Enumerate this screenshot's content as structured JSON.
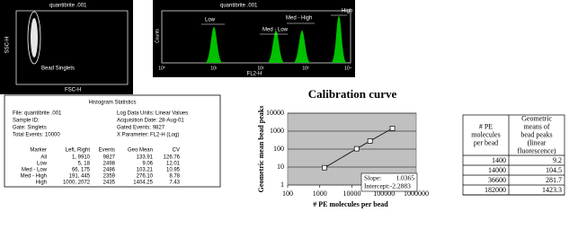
{
  "dot_plot": {
    "title": "quantibrite .001",
    "gate": "Bead Singlets",
    "xlabel": "FSC-H",
    "ylabel": "SSC-H"
  },
  "histogram": {
    "title": "quantibrite .001",
    "xlabel": "FL2-H",
    "ylabel": "Counts",
    "xticks": [
      "10⁰",
      "10¹",
      "10²",
      "10³",
      "10⁴"
    ],
    "markers": [
      "Low",
      "Med - Low",
      "Med - High",
      "High"
    ]
  },
  "stats": {
    "title": "Histogram Statistics",
    "info": [
      "File: quantibrite .001",
      "Log Data Units: Linear Values",
      "Sample ID:",
      "Acquisition Date: 28-Aug-01",
      "Gate: Singlets",
      "Gated Events: 9827",
      "Total Events: 10000",
      "X Parameter: FL2-H (Log)"
    ],
    "header": [
      "Marker",
      "Left, Right",
      "Events",
      "Geo Mean",
      "CV"
    ],
    "rows": [
      [
        "All",
        "1, 9910",
        "9827",
        "133.91",
        "126.76"
      ],
      [
        "Low",
        "5, 18",
        "2498",
        "9.06",
        "12.01"
      ],
      [
        "Med - Low",
        "66, 175",
        "2486",
        "103.21",
        "10.95"
      ],
      [
        "Med - High",
        "191, 445",
        "2359",
        "276.10",
        "8.78"
      ],
      [
        "High",
        "1000, 2072",
        "2435",
        "1404.25",
        "7.43"
      ]
    ]
  },
  "chart_data": {
    "type": "line",
    "title": "Calibration curve",
    "x_label": "# PE molecules per bead",
    "y_label": "Geometric mean bead peaks",
    "x": [
      1400,
      14000,
      36600,
      182000
    ],
    "values": [
      9.2,
      104.5,
      281.7,
      1423.3
    ],
    "xlim": [
      100,
      1000000
    ],
    "ylim": [
      1,
      10000
    ],
    "xticks": [
      100,
      1000,
      10000,
      100000,
      1000000
    ],
    "yticks": [
      1,
      10,
      100,
      1000,
      10000
    ],
    "log_x": true,
    "log_y": true,
    "grid": true,
    "color": "#000000",
    "background": "#c0c0c0",
    "annotations": [
      "Slope:",
      "1.0365",
      "Intercept:-2.2883"
    ]
  },
  "table": {
    "header": [
      "# PE molecules per bead",
      "Geometric means of bead peaks (linear fluorescence)"
    ],
    "rows": [
      [
        "1400",
        "9.2"
      ],
      [
        "14000",
        "104.5"
      ],
      [
        "36600",
        "281.7"
      ],
      [
        "182000",
        "1423.3"
      ]
    ]
  }
}
